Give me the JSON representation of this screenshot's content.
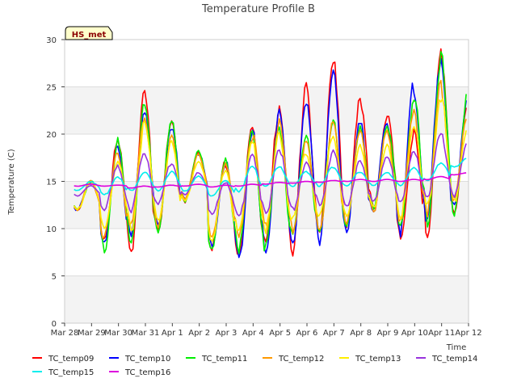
{
  "chart_data": {
    "type": "line",
    "title": "Temperature Profile B",
    "xlabel": "Time",
    "ylabel": "Temperature (C)",
    "site_badge": "HS_met",
    "x_ticks": [
      "Mar 28",
      "Mar 29",
      "Mar 30",
      "Mar 31",
      "Apr 1",
      "Apr 2",
      "Apr 3",
      "Apr 4",
      "Apr 5",
      "Apr 6",
      "Apr 7",
      "Apr 8",
      "Apr 9",
      "Apr 10",
      "Apr 11",
      "Apr 12"
    ],
    "y_ticks": [
      0,
      5,
      10,
      15,
      20,
      25,
      30
    ],
    "ylim": [
      0,
      30
    ],
    "x_range_days": [
      0,
      15
    ],
    "grid": "horizontal bands",
    "legend_position": "bottom",
    "series": [
      {
        "name": "TC_temp09",
        "color": "#ff0000",
        "daily_max": [
          15,
          19,
          24,
          21,
          18,
          17,
          21,
          23,
          26,
          28.5,
          24,
          22,
          20,
          28,
          23
        ],
        "daily_min": [
          12,
          9,
          8,
          10,
          13,
          8,
          7,
          8,
          7,
          9,
          10,
          12,
          9,
          10,
          12
        ]
      },
      {
        "name": "TC_temp10",
        "color": "#0000ff",
        "daily_max": [
          15,
          19,
          23,
          21,
          18,
          17,
          20,
          22,
          23,
          26,
          21,
          21,
          25,
          28,
          24
        ],
        "daily_min": [
          12,
          8,
          9,
          10,
          13,
          8,
          7,
          8,
          9,
          9,
          10,
          12,
          10,
          11,
          12
        ]
      },
      {
        "name": "TC_temp11",
        "color": "#00ee00",
        "daily_max": [
          15,
          19,
          23,
          21,
          18,
          17,
          20,
          21,
          20,
          22,
          21,
          21,
          24,
          28,
          24
        ],
        "daily_min": [
          12,
          8,
          9,
          10,
          13,
          8,
          8,
          8,
          9,
          9,
          10,
          12,
          10,
          11,
          12
        ]
      },
      {
        "name": "TC_temp12",
        "color": "#ff9900",
        "daily_max": [
          15,
          18,
          22,
          20,
          18,
          17,
          20,
          21,
          19,
          21,
          20,
          20,
          22,
          25,
          22
        ],
        "daily_min": [
          12,
          9,
          10,
          10,
          13,
          9,
          9,
          10,
          10,
          10,
          11,
          12,
          11,
          12,
          13
        ]
      },
      {
        "name": "TC_temp13",
        "color": "#ffee00",
        "daily_max": [
          15,
          17,
          21,
          19,
          17,
          16,
          19,
          20,
          18,
          20,
          19,
          19,
          21,
          24,
          21
        ],
        "daily_min": [
          12,
          10,
          10,
          11,
          13,
          9,
          10,
          10,
          11,
          11,
          11,
          12,
          11,
          12,
          13
        ]
      },
      {
        "name": "TC_temp14",
        "color": "#9933dd",
        "daily_max": [
          14.5,
          16.5,
          18,
          17,
          16,
          15,
          18,
          18.5,
          17,
          18,
          17,
          17.5,
          18,
          20,
          19
        ],
        "daily_min": [
          13.5,
          12,
          12,
          12.5,
          13.5,
          11.5,
          11,
          11.5,
          12,
          12.5,
          12.5,
          13,
          13,
          13.5,
          13.5
        ]
      },
      {
        "name": "TC_temp15",
        "color": "#00eeee",
        "daily_max": [
          15,
          15.5,
          16,
          16,
          15.5,
          15,
          16.5,
          16.5,
          16,
          16.5,
          16,
          16,
          16.5,
          17,
          17.5
        ],
        "daily_min": [
          14,
          13.5,
          14,
          14,
          14,
          13.5,
          14,
          14.5,
          14.5,
          14.5,
          14.5,
          14.5,
          14.5,
          15,
          16.5
        ]
      },
      {
        "name": "TC_temp16",
        "color": "#dd00dd",
        "daily_max": [
          14.7,
          14.6,
          14.5,
          14.6,
          14.7,
          14.6,
          14.7,
          14.9,
          15,
          15.1,
          15.2,
          15.2,
          15.2,
          15.5,
          15.9
        ],
        "daily_min": [
          14.5,
          14.5,
          14.3,
          14.4,
          14.5,
          14.4,
          14.5,
          14.7,
          14.8,
          14.9,
          15,
          15,
          15,
          15.2,
          15.7
        ]
      }
    ]
  }
}
